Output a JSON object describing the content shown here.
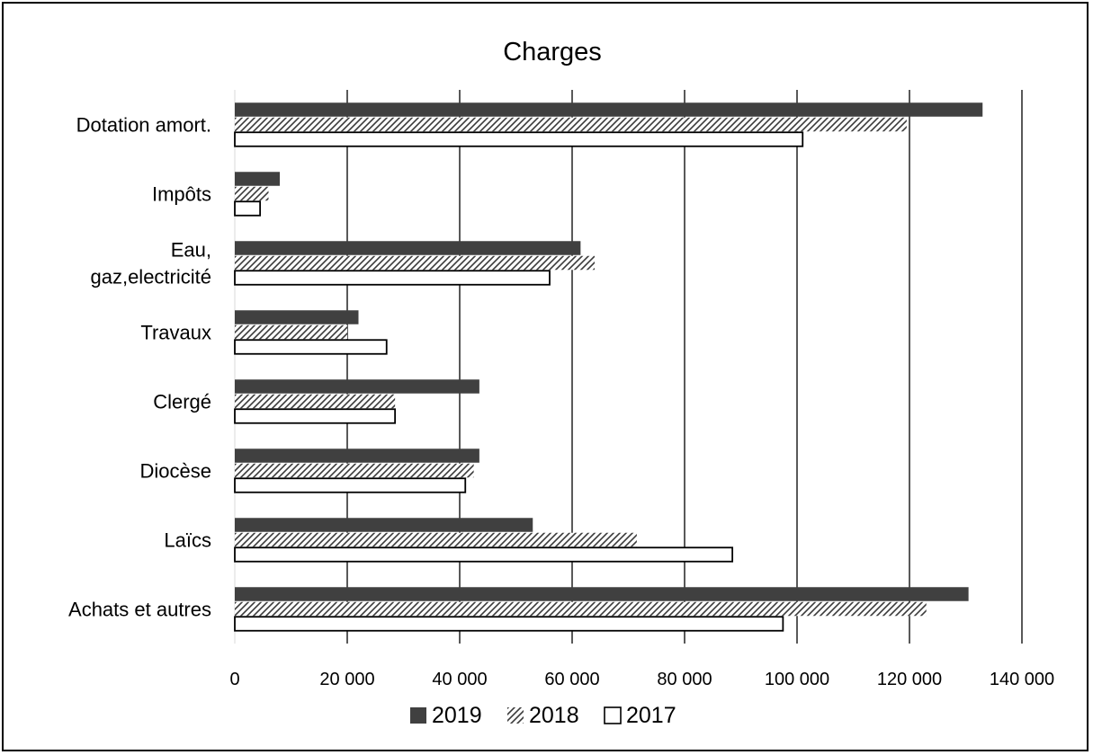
{
  "chart_data": {
    "type": "bar",
    "orientation": "horizontal",
    "title": "Charges",
    "xlabel": "",
    "ylabel": "",
    "categories": [
      [
        "Dotation amort."
      ],
      [
        "Impôts"
      ],
      [
        "Eau,",
        "gaz,electricité"
      ],
      [
        "Travaux"
      ],
      [
        "Clergé"
      ],
      [
        "Diocèse"
      ],
      [
        "Laïcs"
      ],
      [
        "Achats et autres"
      ]
    ],
    "series": [
      {
        "name": "2019",
        "pattern": "solid",
        "color": "#404040",
        "values": [
          133000,
          8000,
          61500,
          22000,
          43500,
          43500,
          53000,
          130500
        ]
      },
      {
        "name": "2018",
        "pattern": "hatch",
        "color": "#404040",
        "values": [
          119500,
          6000,
          64000,
          20000,
          28500,
          42500,
          71500,
          123000
        ]
      },
      {
        "name": "2017",
        "pattern": "outline",
        "color": "#000000",
        "values": [
          101000,
          4500,
          56000,
          27000,
          28500,
          41000,
          88500,
          97500
        ]
      }
    ],
    "xlim": [
      0,
      140000
    ],
    "xticks": [
      0,
      20000,
      40000,
      60000,
      80000,
      100000,
      120000,
      140000
    ],
    "xtick_labels": [
      "0",
      "20 000",
      "40 000",
      "60 000",
      "80 000",
      "100 000",
      "120 000",
      "140 000"
    ],
    "grid": "vertical",
    "legend_position": "bottom"
  }
}
